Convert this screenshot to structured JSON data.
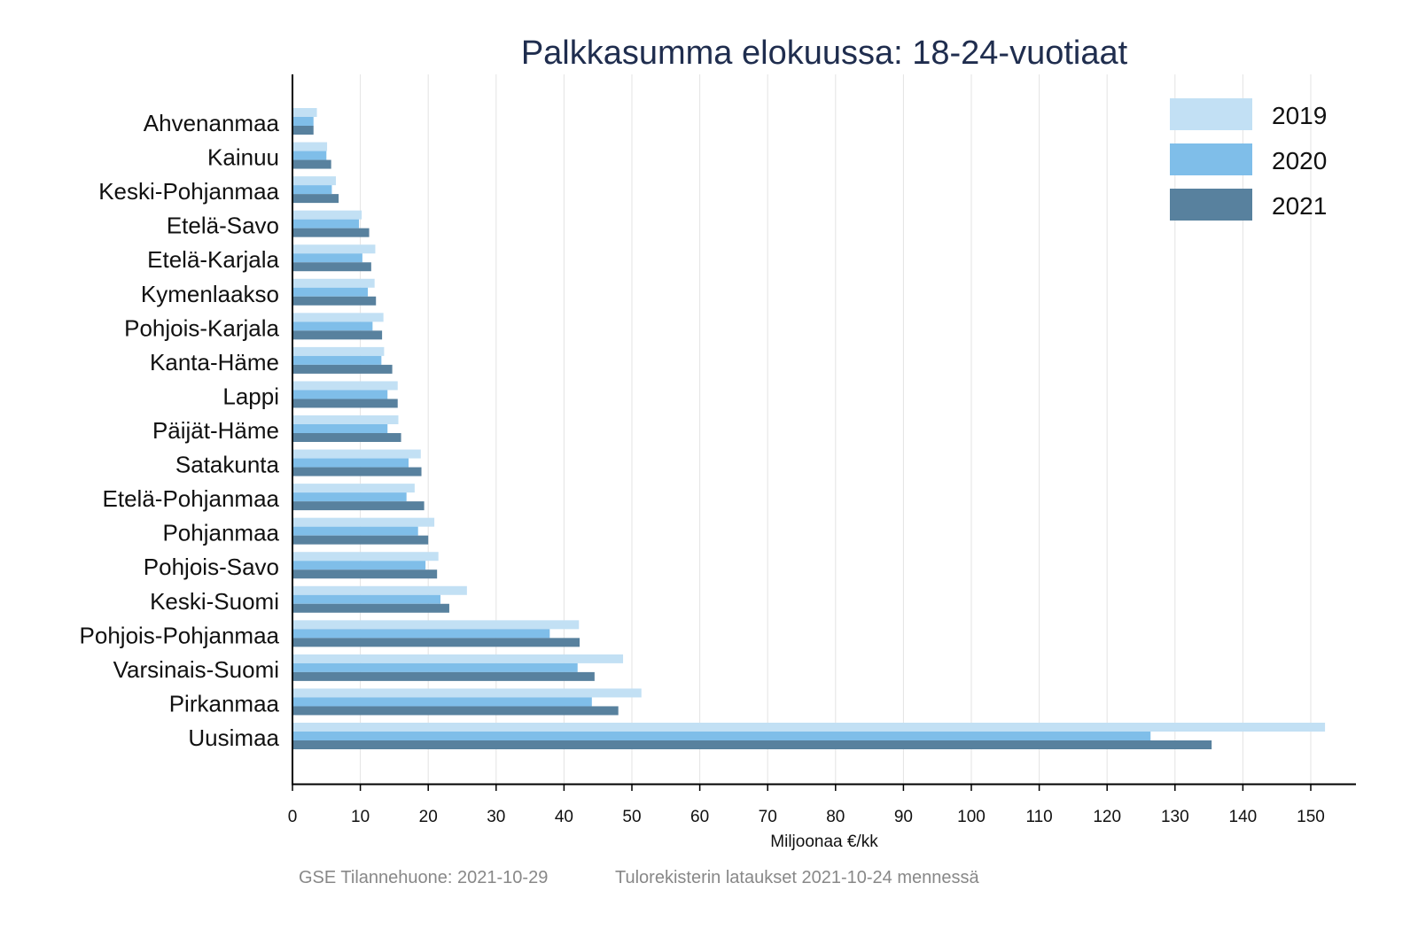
{
  "chart_data": {
    "type": "bar",
    "orientation": "horizontal",
    "title": "Palkkasumma elokuussa: 18-24-vuotiaat",
    "xlabel": "Miljoonaa €/kk",
    "ylabel": "",
    "xlim": [
      0,
      155
    ],
    "xticks": [
      0,
      10,
      20,
      30,
      40,
      50,
      60,
      70,
      80,
      90,
      100,
      110,
      120,
      130,
      140,
      150
    ],
    "grid": "vertical",
    "legend_position": "top-right",
    "categories": [
      "Ahvenanmaa",
      "Kainuu",
      "Keski-Pohjanmaa",
      "Etelä-Savo",
      "Etelä-Karjala",
      "Kymenlaakso",
      "Pohjois-Karjala",
      "Kanta-Häme",
      "Lappi",
      "Päijät-Häme",
      "Satakunta",
      "Etelä-Pohjanmaa",
      "Pohjanmaa",
      "Pohjois-Savo",
      "Keski-Suomi",
      "Pohjois-Pohjanmaa",
      "Varsinais-Suomi",
      "Pirkanmaa",
      "Uusimaa"
    ],
    "series": [
      {
        "name": "2019",
        "color": "#c2e0f4",
        "values": [
          3.6,
          5.1,
          6.4,
          10.2,
          12.2,
          12.1,
          13.4,
          13.5,
          15.5,
          15.6,
          18.9,
          18.0,
          20.9,
          21.5,
          25.7,
          42.2,
          48.7,
          51.4,
          152.1
        ]
      },
      {
        "name": "2020",
        "color": "#7fbee9",
        "values": [
          3.1,
          5.0,
          5.8,
          9.8,
          10.3,
          11.1,
          11.8,
          13.1,
          14.0,
          14.0,
          17.1,
          16.8,
          18.5,
          19.6,
          21.8,
          37.9,
          42.0,
          44.1,
          126.4
        ]
      },
      {
        "name": "2021",
        "color": "#58819e",
        "values": [
          3.1,
          5.7,
          6.8,
          11.3,
          11.6,
          12.3,
          13.2,
          14.7,
          15.5,
          16.0,
          19.0,
          19.4,
          20.0,
          21.3,
          23.1,
          42.3,
          44.5,
          48.0,
          135.4
        ]
      }
    ]
  },
  "footer": {
    "left": "GSE Tilannehuone: 2021-10-29",
    "right": "Tulorekisterin lataukset 2021-10-24 mennessä"
  }
}
